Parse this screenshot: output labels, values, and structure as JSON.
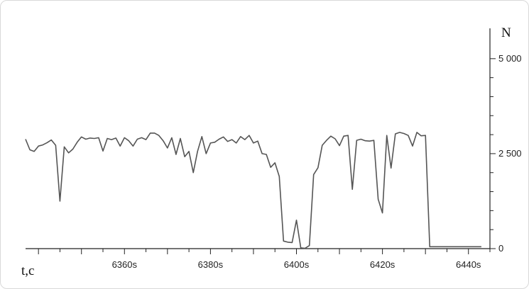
{
  "chart_data": {
    "type": "line",
    "title": "",
    "xlabel": "t,c",
    "ylabel": "N",
    "xlim": [
      6337,
      6445
    ],
    "ylim": [
      0,
      5500
    ],
    "x_ticks": [
      {
        "value": 6360,
        "label": "6360s"
      },
      {
        "value": 6380,
        "label": "6380s"
      },
      {
        "value": 6400,
        "label": "6400s"
      },
      {
        "value": 6420,
        "label": "6420s"
      },
      {
        "value": 6440,
        "label": "6440s"
      }
    ],
    "y_ticks": [
      {
        "value": 0,
        "label": "0"
      },
      {
        "value": 2500,
        "label": "2 500"
      },
      {
        "value": 5000,
        "label": "5 000"
      }
    ],
    "grid": false,
    "series": [
      {
        "color": "#555555",
        "points": [
          [
            6337,
            2880
          ],
          [
            6338,
            2600
          ],
          [
            6339,
            2560
          ],
          [
            6340,
            2700
          ],
          [
            6341,
            2730
          ],
          [
            6342,
            2790
          ],
          [
            6343,
            2860
          ],
          [
            6344,
            2720
          ],
          [
            6345,
            1250
          ],
          [
            6346,
            2680
          ],
          [
            6347,
            2520
          ],
          [
            6348,
            2620
          ],
          [
            6349,
            2800
          ],
          [
            6350,
            2940
          ],
          [
            6351,
            2880
          ],
          [
            6352,
            2910
          ],
          [
            6353,
            2900
          ],
          [
            6354,
            2920
          ],
          [
            6355,
            2570
          ],
          [
            6356,
            2900
          ],
          [
            6357,
            2870
          ],
          [
            6358,
            2910
          ],
          [
            6359,
            2700
          ],
          [
            6360,
            2920
          ],
          [
            6361,
            2840
          ],
          [
            6362,
            2700
          ],
          [
            6363,
            2880
          ],
          [
            6364,
            2920
          ],
          [
            6365,
            2870
          ],
          [
            6366,
            3040
          ],
          [
            6367,
            3040
          ],
          [
            6368,
            2980
          ],
          [
            6369,
            2840
          ],
          [
            6370,
            2650
          ],
          [
            6371,
            2920
          ],
          [
            6372,
            2480
          ],
          [
            6373,
            2900
          ],
          [
            6374,
            2420
          ],
          [
            6375,
            2560
          ],
          [
            6376,
            2000
          ],
          [
            6377,
            2560
          ],
          [
            6378,
            2950
          ],
          [
            6379,
            2500
          ],
          [
            6380,
            2780
          ],
          [
            6381,
            2800
          ],
          [
            6382,
            2880
          ],
          [
            6383,
            2940
          ],
          [
            6384,
            2820
          ],
          [
            6385,
            2870
          ],
          [
            6386,
            2780
          ],
          [
            6387,
            2950
          ],
          [
            6388,
            2870
          ],
          [
            6389,
            2980
          ],
          [
            6390,
            2780
          ],
          [
            6391,
            2830
          ],
          [
            6392,
            2500
          ],
          [
            6393,
            2480
          ],
          [
            6394,
            2140
          ],
          [
            6395,
            2260
          ],
          [
            6396,
            1900
          ],
          [
            6397,
            200
          ],
          [
            6398,
            170
          ],
          [
            6399,
            160
          ],
          [
            6400,
            750
          ],
          [
            6401,
            20
          ],
          [
            6402,
            10
          ],
          [
            6403,
            80
          ],
          [
            6404,
            1950
          ],
          [
            6405,
            2130
          ],
          [
            6406,
            2720
          ],
          [
            6407,
            2850
          ],
          [
            6408,
            2960
          ],
          [
            6409,
            2890
          ],
          [
            6410,
            2710
          ],
          [
            6411,
            2960
          ],
          [
            6412,
            2980
          ],
          [
            6413,
            1560
          ],
          [
            6414,
            2850
          ],
          [
            6415,
            2880
          ],
          [
            6416,
            2840
          ],
          [
            6417,
            2830
          ],
          [
            6418,
            2850
          ],
          [
            6419,
            1300
          ],
          [
            6420,
            940
          ],
          [
            6421,
            2980
          ],
          [
            6422,
            2120
          ],
          [
            6423,
            3020
          ],
          [
            6424,
            3060
          ],
          [
            6425,
            3030
          ],
          [
            6426,
            2980
          ],
          [
            6427,
            2700
          ],
          [
            6428,
            3060
          ],
          [
            6429,
            2970
          ],
          [
            6430,
            2980
          ],
          [
            6431,
            50
          ],
          [
            6432,
            50
          ],
          [
            6433,
            50
          ],
          [
            6434,
            50
          ],
          [
            6435,
            50
          ],
          [
            6436,
            50
          ],
          [
            6437,
            50
          ],
          [
            6438,
            50
          ],
          [
            6439,
            50
          ],
          [
            6440,
            50
          ],
          [
            6441,
            50
          ],
          [
            6442,
            50
          ],
          [
            6443,
            50
          ]
        ]
      }
    ]
  }
}
